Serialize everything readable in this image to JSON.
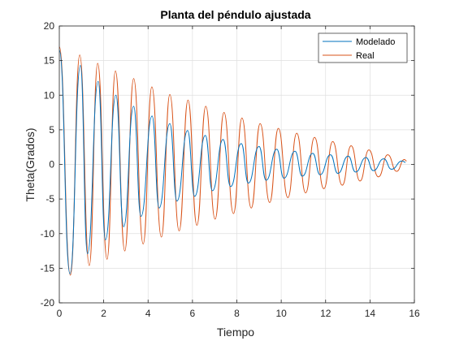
{
  "chart_data": {
    "type": "line",
    "title": "Planta del péndulo ajustada",
    "xlabel": "Tiempo",
    "ylabel": "Theta(Grados)",
    "xlim": [
      0,
      16
    ],
    "ylim": [
      -20,
      20
    ],
    "xticks": [
      0,
      2,
      4,
      6,
      8,
      10,
      12,
      14,
      16
    ],
    "yticks": [
      -20,
      -15,
      -10,
      -5,
      0,
      5,
      10,
      15,
      20
    ],
    "grid": true,
    "legend_position": "top-right",
    "series": [
      {
        "name": "Modelado",
        "color": "#0072BD",
        "x": [
          0,
          0.48,
          0.95,
          1.27,
          1.75,
          2.08,
          2.55,
          2.9,
          3.35,
          3.68,
          4.18,
          4.5,
          4.98,
          5.3,
          5.78,
          6.1,
          6.58,
          6.9,
          7.38,
          7.72,
          8.2,
          8.52,
          9.0,
          9.32,
          9.8,
          10.12,
          10.62,
          10.95,
          11.42,
          11.75,
          12.22,
          12.55,
          13.02,
          13.35,
          13.82,
          14.15,
          14.62,
          14.97,
          15.45,
          15.6
        ],
        "y": [
          16.5,
          -15.8,
          14.3,
          -12.9,
          12.0,
          -10.9,
          10.0,
          -9.0,
          8.4,
          -7.5,
          7.0,
          -6.3,
          5.9,
          -5.3,
          4.9,
          -4.6,
          4.2,
          -3.8,
          3.6,
          -3.2,
          3.0,
          -2.7,
          2.6,
          -2.3,
          2.2,
          -2.0,
          1.9,
          -1.7,
          1.6,
          -1.5,
          1.4,
          -1.3,
          1.2,
          -1.1,
          1.0,
          -0.9,
          0.8,
          -0.7,
          0.5,
          0.3
        ]
      },
      {
        "name": "Real",
        "color": "#D95319",
        "x": [
          0,
          0.5,
          0.92,
          1.35,
          1.73,
          2.15,
          2.53,
          2.95,
          3.35,
          3.78,
          4.17,
          4.6,
          4.98,
          5.4,
          5.8,
          6.2,
          6.6,
          7.02,
          7.42,
          7.85,
          8.23,
          8.65,
          9.05,
          9.48,
          9.87,
          10.3,
          10.7,
          11.1,
          11.5,
          11.92,
          12.32,
          12.75,
          13.15,
          13.55,
          13.95,
          14.38,
          14.8,
          15.2,
          15.55,
          15.65
        ],
        "y": [
          17.0,
          -16.0,
          15.8,
          -14.6,
          14.6,
          -13.7,
          13.5,
          -12.5,
          12.4,
          -11.5,
          11.2,
          -10.5,
          10.1,
          -9.6,
          9.3,
          -8.8,
          8.4,
          -7.9,
          7.5,
          -7.1,
          6.7,
          -6.3,
          5.9,
          -5.5,
          5.2,
          -4.8,
          4.5,
          -4.1,
          3.9,
          -3.5,
          3.3,
          -3.0,
          2.7,
          -2.4,
          2.1,
          -1.8,
          1.4,
          -1.0,
          0.7,
          0.5
        ]
      }
    ]
  }
}
